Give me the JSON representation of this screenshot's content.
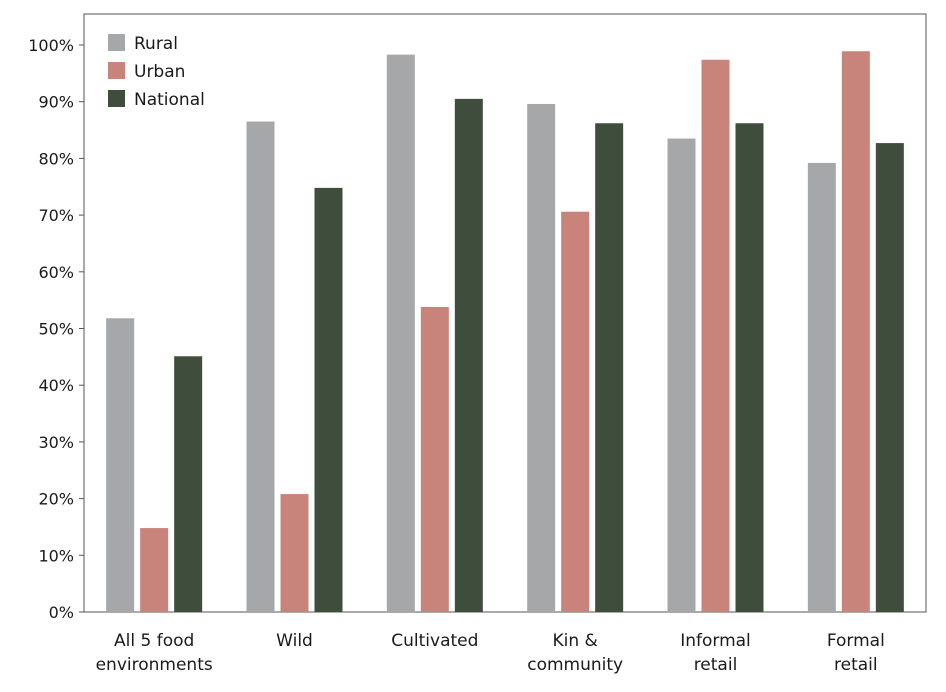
{
  "chart_data": {
    "type": "bar",
    "title": "",
    "xlabel": "",
    "ylabel": "",
    "ylim": [
      0,
      100
    ],
    "yticks": [
      "0%",
      "10%",
      "20%",
      "30%",
      "40%",
      "50%",
      "60%",
      "70%",
      "80%",
      "90%",
      "100%"
    ],
    "ytick_values": [
      0,
      10,
      20,
      30,
      40,
      50,
      60,
      70,
      80,
      90,
      100
    ],
    "categories": [
      [
        "All 5 food",
        "environments"
      ],
      [
        "Wild"
      ],
      [
        "Cultivated"
      ],
      [
        "Kin &",
        "community"
      ],
      [
        "Informal",
        "retail"
      ],
      [
        "Formal",
        "retail"
      ]
    ],
    "series": [
      {
        "name": "Rural",
        "color": "#a6a7a9",
        "values": [
          51.8,
          86.5,
          98.3,
          89.6,
          83.5,
          79.2
        ]
      },
      {
        "name": "Urban",
        "color": "#c8847a",
        "values": [
          14.8,
          20.8,
          53.8,
          70.6,
          97.4,
          98.9
        ]
      },
      {
        "name": "National",
        "color": "#3f4e3c",
        "values": [
          45.1,
          74.8,
          90.5,
          86.2,
          86.2,
          82.7
        ]
      }
    ],
    "grid": false,
    "legend_position": "top-left"
  }
}
